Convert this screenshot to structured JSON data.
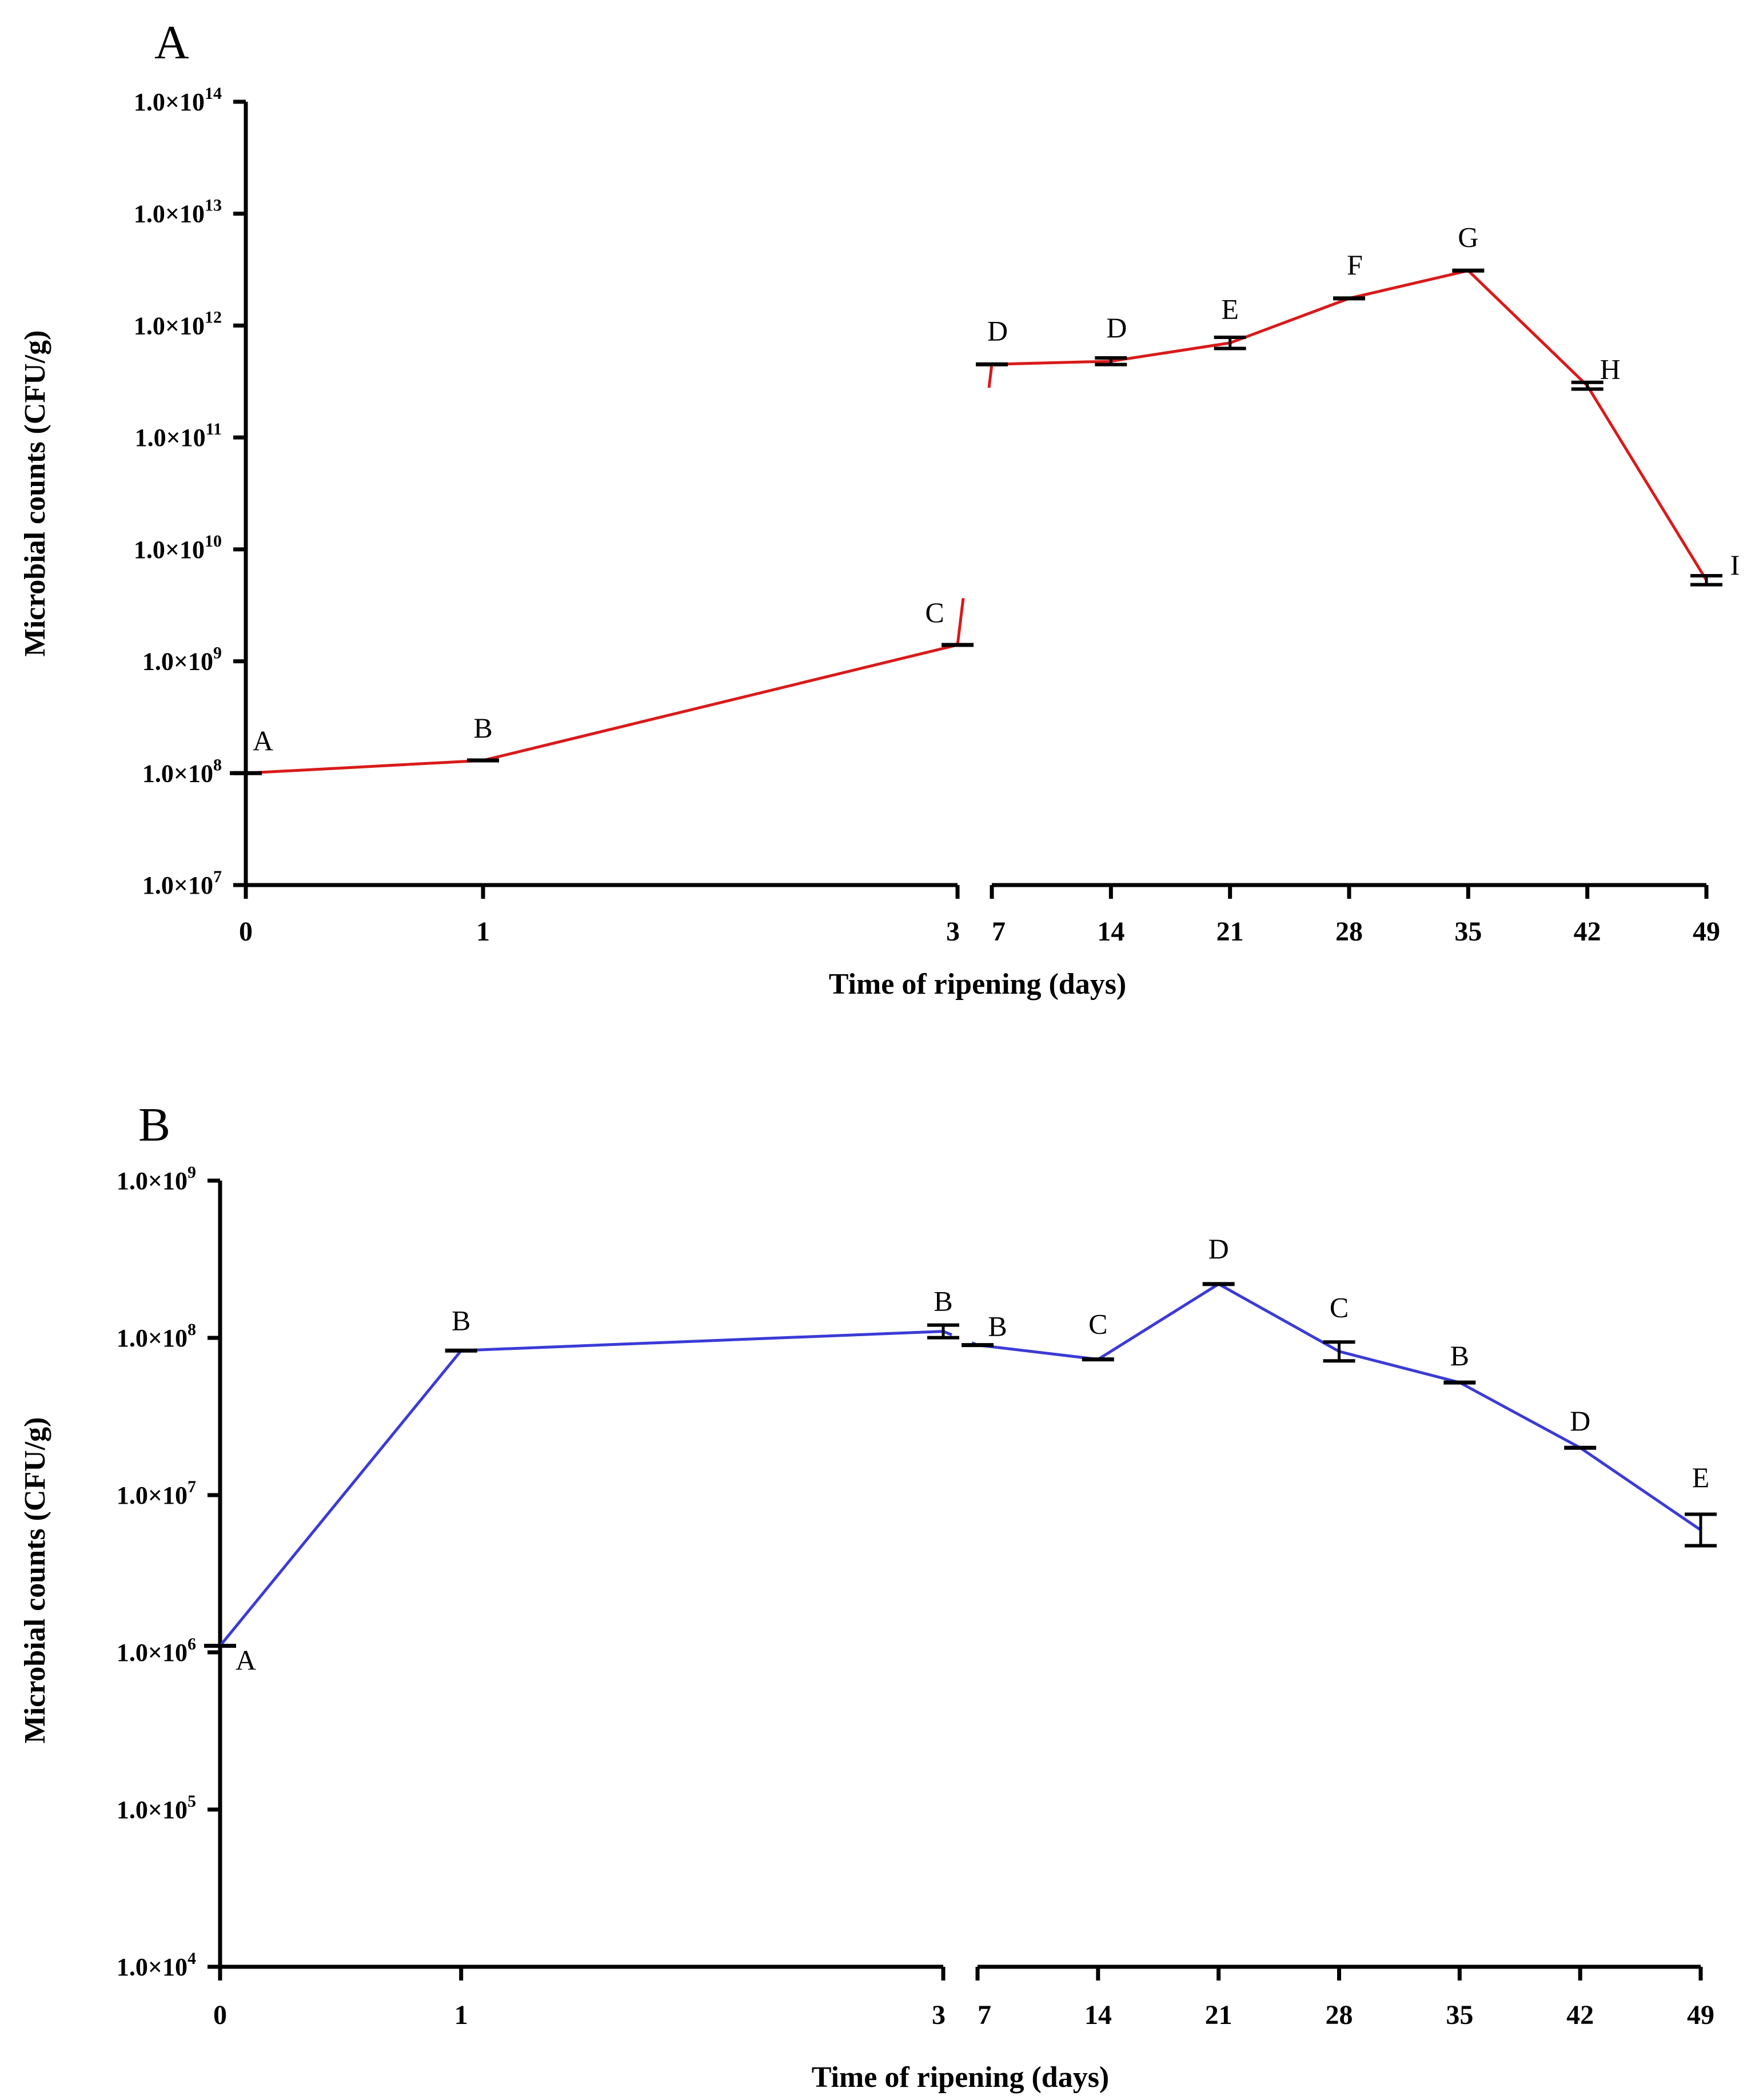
{
  "chart_data": [
    {
      "panel": "A",
      "type": "line",
      "color": "#d91a1a",
      "xlabel": "Time of ripening (days)",
      "ylabel": "Microbial counts (CFU/g)",
      "yscale": "log",
      "ylim": [
        10000000,
        100000000000000
      ],
      "y_ticks": [
        {
          "label": "1.0×10",
          "exp": "7"
        },
        {
          "label": "1.0×10",
          "exp": "8"
        },
        {
          "label": "1.0×10",
          "exp": "9"
        },
        {
          "label": "1.0×10",
          "exp": "10"
        },
        {
          "label": "1.0×10",
          "exp": "11"
        },
        {
          "label": "1.0×10",
          "exp": "12"
        },
        {
          "label": "1.0×10",
          "exp": "13"
        },
        {
          "label": "1.0×10",
          "exp": "14"
        }
      ],
      "x_break": "between day 3 and day 7",
      "segments": [
        {
          "x": [
            0,
            1,
            3
          ],
          "y": [
            100000000,
            130000000,
            1400000000
          ],
          "err": [
            0,
            0,
            0
          ],
          "letters": [
            "A",
            "B",
            "C"
          ],
          "tick_labels": [
            "0",
            "1",
            "3"
          ]
        },
        {
          "x": [
            7,
            14,
            21,
            28,
            35,
            42,
            49
          ],
          "y": [
            450000000000,
            480000000000,
            700000000000,
            1750000000000,
            3100000000000,
            290000000000,
            5300000000
          ],
          "err": [
            0,
            0.03,
            0.05,
            0,
            0,
            0.03,
            0.04
          ],
          "letters": [
            "D",
            "D",
            "E",
            "F",
            "G",
            "H",
            "I"
          ],
          "tick_labels": [
            "7",
            "14",
            "21",
            "28",
            "35",
            "42",
            "49"
          ]
        }
      ]
    },
    {
      "panel": "B",
      "type": "line",
      "color": "#3b3bd6",
      "xlabel": "Time of ripening (days)",
      "ylabel": "Microbial counts (CFU/g)",
      "yscale": "log",
      "ylim": [
        10000,
        1000000000
      ],
      "y_ticks": [
        {
          "label": "1.0×10",
          "exp": "4"
        },
        {
          "label": "1.0×10",
          "exp": "5"
        },
        {
          "label": "1.0×10",
          "exp": "6"
        },
        {
          "label": "1.0×10",
          "exp": "7"
        },
        {
          "label": "1.0×10",
          "exp": "8"
        },
        {
          "label": "1.0×10",
          "exp": "9"
        }
      ],
      "x_break": "between day 3 and day 7",
      "segments": [
        {
          "x": [
            0,
            1,
            3
          ],
          "y": [
            1100000,
            83000000,
            110000000
          ],
          "err": [
            0,
            0,
            0.04
          ],
          "letters": [
            "A",
            "B",
            "B"
          ],
          "tick_labels": [
            "0",
            "1",
            "3"
          ]
        },
        {
          "x": [
            7,
            14,
            21,
            28,
            35,
            42,
            49
          ],
          "y": [
            90000000,
            73000000,
            220000000,
            82000000,
            52000000,
            20000000,
            6000000
          ],
          "err": [
            0,
            0,
            0,
            0.06,
            0,
            0,
            0.1
          ],
          "letters": [
            "B",
            "C",
            "D",
            "C",
            "B",
            "D",
            "E"
          ],
          "tick_labels": [
            "7",
            "14",
            "21",
            "28",
            "35",
            "42",
            "49"
          ]
        }
      ]
    }
  ]
}
